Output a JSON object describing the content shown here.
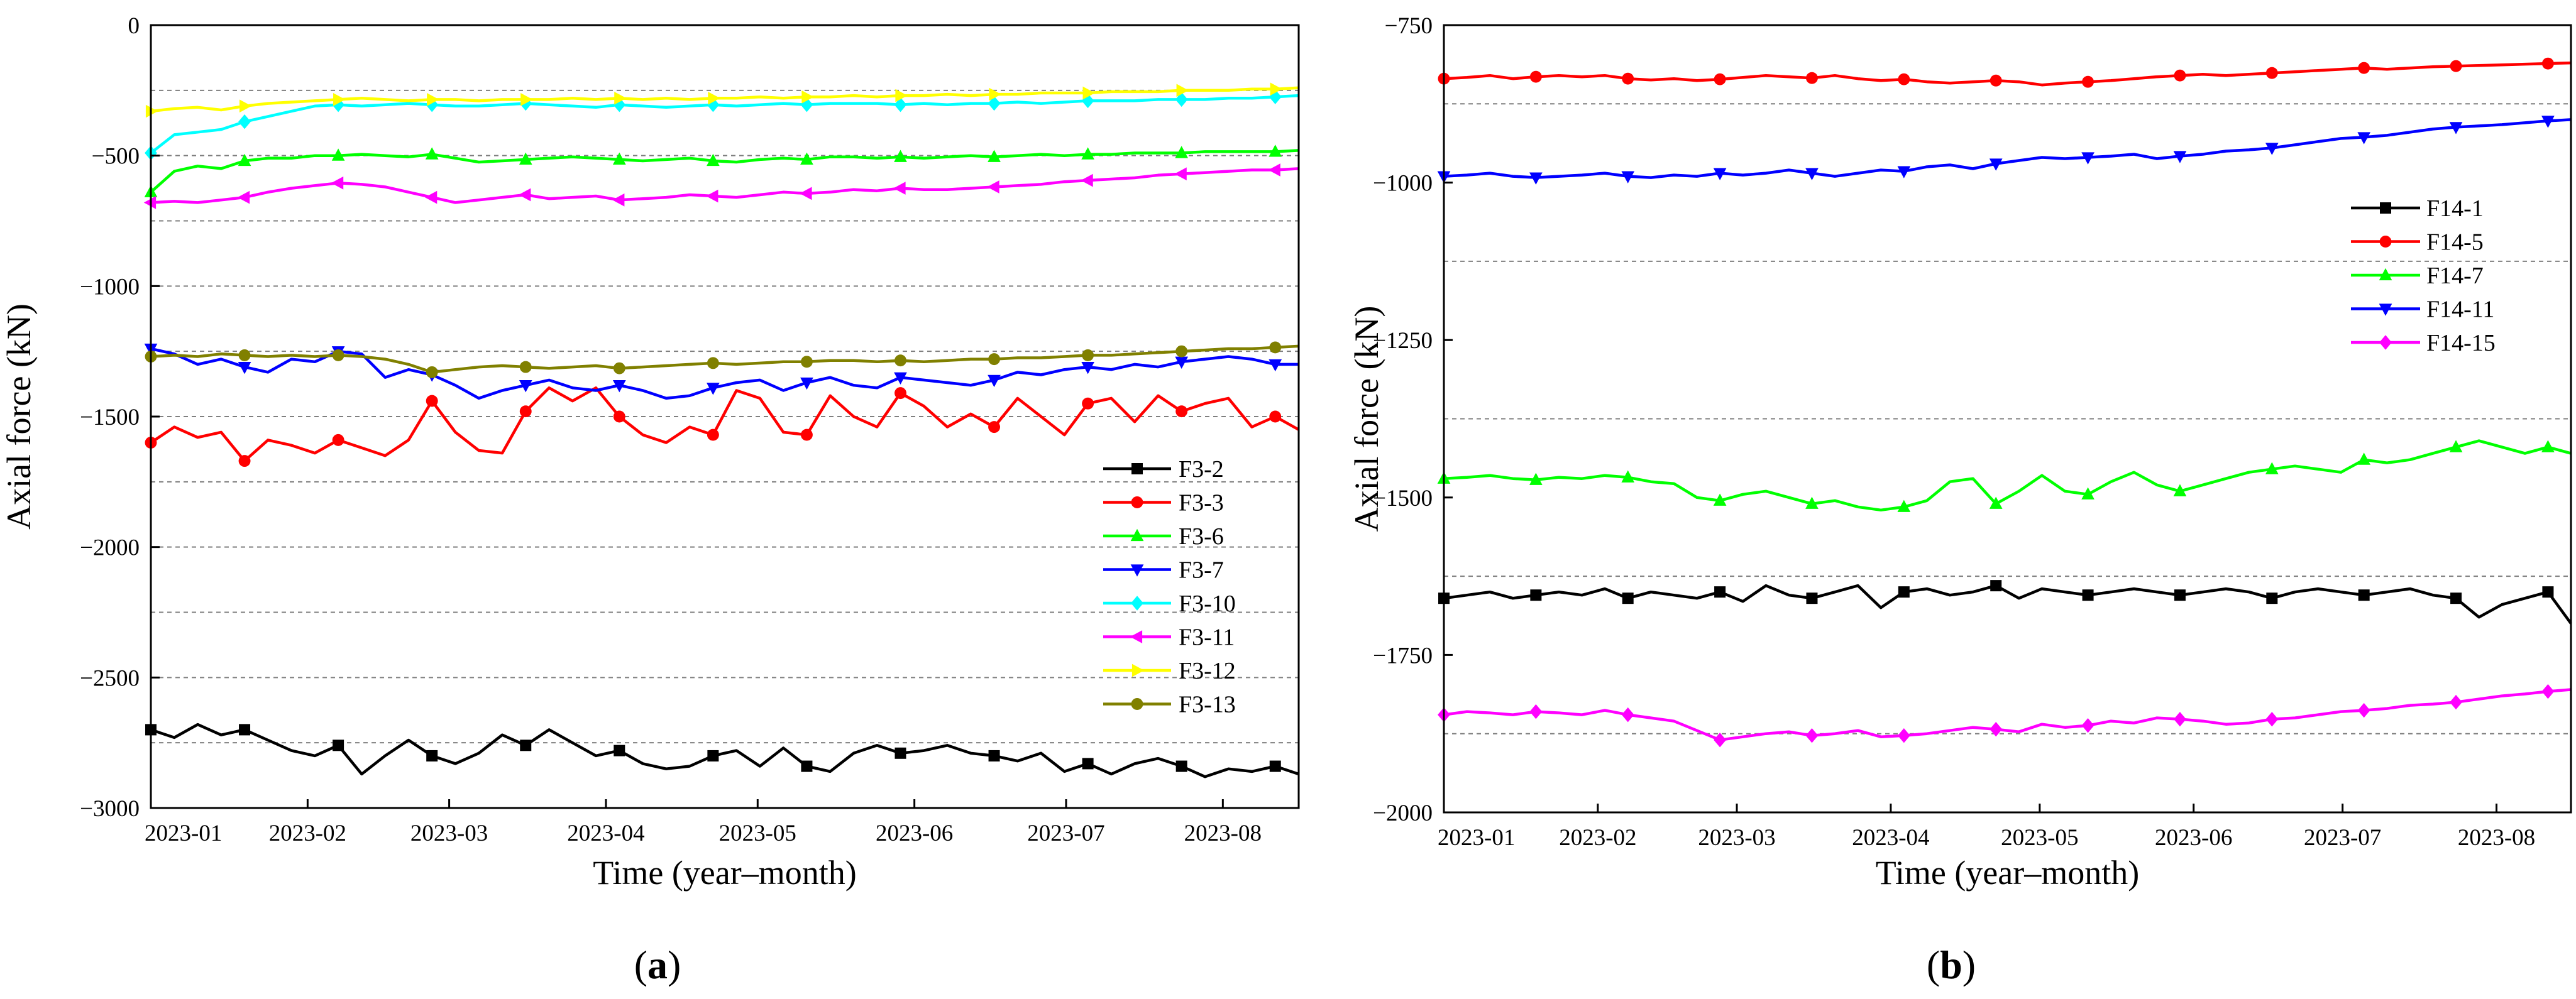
{
  "chart_data": [
    {
      "panel": "(a)",
      "panel_open": "(",
      "panel_letter": "a",
      "panel_close": ")",
      "type": "line",
      "xlabel": "Time (year–month)",
      "ylabel": "Axial force (kN)",
      "ylim": [
        -3000,
        0
      ],
      "yticks": [
        0,
        -500,
        -1000,
        -1500,
        -2000,
        -2500,
        -3000
      ],
      "y_tick_labels": [
        "0",
        "−500",
        "−1000",
        "−1500",
        "−2000",
        "−2500",
        "−3000"
      ],
      "grid_dashed_y": [
        -250,
        -500,
        -750,
        -1000,
        -1250,
        -1500,
        -1750,
        -2000,
        -2250,
        -2500,
        -2750
      ],
      "xlim": [
        0,
        227
      ],
      "x_ticks": [
        0,
        31,
        59,
        90,
        120,
        151,
        181,
        212
      ],
      "x_tick_labels": [
        "2023-01",
        "2023-02",
        "2023-03",
        "2023-04",
        "2023-05",
        "2023-06",
        "2023-07",
        "2023-08"
      ],
      "legend_position": "lower-right",
      "series": [
        {
          "name": "F3-2",
          "color": "#000000",
          "marker": "square",
          "values": [
            -2700,
            -2730,
            -2680,
            -2720,
            -2700,
            -2740,
            -2780,
            -2800,
            -2760,
            -2870,
            -2800,
            -2740,
            -2800,
            -2830,
            -2790,
            -2720,
            -2760,
            -2700,
            -2750,
            -2800,
            -2780,
            -2830,
            -2850,
            -2840,
            -2800,
            -2780,
            -2840,
            -2770,
            -2840,
            -2860,
            -2790,
            -2760,
            -2790,
            -2780,
            -2760,
            -2790,
            -2800,
            -2820,
            -2790,
            -2860,
            -2830,
            -2870,
            -2830,
            -2810,
            -2840,
            -2880,
            -2850,
            -2860,
            -2840,
            -2870
          ]
        },
        {
          "name": "F3-3",
          "color": "#ff0000",
          "marker": "circle",
          "values": [
            -1600,
            -1540,
            -1580,
            -1560,
            -1670,
            -1590,
            -1610,
            -1640,
            -1590,
            -1620,
            -1650,
            -1590,
            -1440,
            -1560,
            -1630,
            -1640,
            -1480,
            -1390,
            -1440,
            -1390,
            -1500,
            -1570,
            -1600,
            -1540,
            -1570,
            -1400,
            -1430,
            -1560,
            -1570,
            -1420,
            -1500,
            -1540,
            -1410,
            -1460,
            -1540,
            -1490,
            -1540,
            -1430,
            -1500,
            -1570,
            -1450,
            -1430,
            -1520,
            -1420,
            -1480,
            -1450,
            -1430,
            -1540,
            -1500,
            -1550
          ]
        },
        {
          "name": "F3-6",
          "color": "#00ff00",
          "marker": "triangle-up",
          "values": [
            -640,
            -560,
            -540,
            -550,
            -520,
            -510,
            -510,
            -500,
            -500,
            -495,
            -500,
            -505,
            -495,
            -510,
            -525,
            -520,
            -515,
            -510,
            -505,
            -510,
            -515,
            -520,
            -515,
            -510,
            -520,
            -525,
            -515,
            -510,
            -515,
            -505,
            -505,
            -510,
            -505,
            -510,
            -505,
            -500,
            -505,
            -500,
            -495,
            -500,
            -495,
            -495,
            -490,
            -490,
            -490,
            -485,
            -485,
            -485,
            -485,
            -480
          ]
        },
        {
          "name": "F3-7",
          "color": "#0000ff",
          "marker": "triangle-down",
          "values": [
            -1240,
            -1260,
            -1300,
            -1280,
            -1310,
            -1330,
            -1280,
            -1290,
            -1250,
            -1260,
            -1350,
            -1320,
            -1340,
            -1380,
            -1430,
            -1400,
            -1380,
            -1360,
            -1390,
            -1400,
            -1380,
            -1400,
            -1430,
            -1420,
            -1390,
            -1370,
            -1360,
            -1400,
            -1370,
            -1350,
            -1380,
            -1390,
            -1350,
            -1360,
            -1370,
            -1380,
            -1360,
            -1330,
            -1340,
            -1320,
            -1310,
            -1320,
            -1300,
            -1310,
            -1290,
            -1280,
            -1270,
            -1280,
            -1300,
            -1300
          ]
        },
        {
          "name": "F3-10",
          "color": "#00ffff",
          "marker": "diamond",
          "values": [
            -490,
            -420,
            -410,
            -400,
            -370,
            -350,
            -330,
            -310,
            -305,
            -310,
            -305,
            -300,
            -305,
            -310,
            -310,
            -305,
            -300,
            -305,
            -310,
            -315,
            -305,
            -310,
            -315,
            -310,
            -305,
            -310,
            -305,
            -300,
            -305,
            -300,
            -300,
            -300,
            -305,
            -300,
            -305,
            -300,
            -300,
            -295,
            -300,
            -295,
            -290,
            -290,
            -290,
            -285,
            -285,
            -285,
            -280,
            -280,
            -275,
            -270
          ]
        },
        {
          "name": "F3-11",
          "color": "#ff00ff",
          "marker": "triangle-left",
          "values": [
            -680,
            -675,
            -680,
            -670,
            -660,
            -640,
            -625,
            -615,
            -605,
            -610,
            -620,
            -640,
            -660,
            -680,
            -670,
            -660,
            -650,
            -665,
            -660,
            -655,
            -670,
            -665,
            -660,
            -650,
            -655,
            -660,
            -650,
            -640,
            -645,
            -640,
            -630,
            -635,
            -625,
            -630,
            -630,
            -625,
            -620,
            -615,
            -610,
            -600,
            -595,
            -590,
            -585,
            -575,
            -570,
            -565,
            -560,
            -555,
            -555,
            -550
          ]
        },
        {
          "name": "F3-12",
          "color": "#ffff00",
          "marker": "triangle-right",
          "values": [
            -330,
            -320,
            -315,
            -325,
            -310,
            -300,
            -295,
            -290,
            -285,
            -280,
            -285,
            -290,
            -285,
            -285,
            -290,
            -285,
            -285,
            -285,
            -280,
            -285,
            -280,
            -285,
            -280,
            -285,
            -280,
            -280,
            -275,
            -280,
            -275,
            -275,
            -270,
            -275,
            -270,
            -270,
            -265,
            -270,
            -265,
            -265,
            -260,
            -260,
            -260,
            -255,
            -255,
            -255,
            -250,
            -250,
            -250,
            -245,
            -245,
            -240
          ]
        },
        {
          "name": "F3-13",
          "color": "#808000",
          "marker": "circle",
          "values": [
            -1270,
            -1265,
            -1270,
            -1260,
            -1265,
            -1270,
            -1265,
            -1270,
            -1265,
            -1270,
            -1280,
            -1300,
            -1330,
            -1320,
            -1310,
            -1305,
            -1310,
            -1315,
            -1310,
            -1305,
            -1315,
            -1310,
            -1305,
            -1300,
            -1295,
            -1300,
            -1295,
            -1290,
            -1290,
            -1285,
            -1285,
            -1290,
            -1285,
            -1290,
            -1285,
            -1280,
            -1280,
            -1275,
            -1275,
            -1270,
            -1265,
            -1265,
            -1260,
            -1255,
            -1250,
            -1245,
            -1240,
            -1240,
            -1235,
            -1230
          ]
        }
      ]
    },
    {
      "panel": "(b)",
      "panel_open": "(",
      "panel_letter": "b",
      "panel_close": ")",
      "type": "line",
      "xlabel": "Time (year–month)",
      "ylabel": "Axial force (kN)",
      "ylim": [
        -2000,
        -750
      ],
      "yticks": [
        -750,
        -1000,
        -1250,
        -1500,
        -1750,
        -2000
      ],
      "y_tick_labels": [
        "−750",
        "−1000",
        "−1250",
        "−1500",
        "−1750",
        "−2000"
      ],
      "grid_dashed_y": [
        -875,
        -1125,
        -1375,
        -1625,
        -1875
      ],
      "xlim": [
        0,
        227
      ],
      "x_ticks": [
        0,
        31,
        59,
        90,
        120,
        151,
        181,
        212
      ],
      "x_tick_labels": [
        "2023-01",
        "2023-02",
        "2023-03",
        "2023-04",
        "2023-05",
        "2023-06",
        "2023-07",
        "2023-08"
      ],
      "legend_position": "upper-right",
      "series": [
        {
          "name": "F14-1",
          "color": "#000000",
          "marker": "square",
          "values": [
            -1660,
            -1655,
            -1650,
            -1660,
            -1655,
            -1650,
            -1655,
            -1645,
            -1660,
            -1650,
            -1655,
            -1660,
            -1650,
            -1665,
            -1640,
            -1655,
            -1660,
            -1650,
            -1640,
            -1675,
            -1650,
            -1645,
            -1655,
            -1650,
            -1640,
            -1660,
            -1645,
            -1650,
            -1655,
            -1650,
            -1645,
            -1650,
            -1655,
            -1650,
            -1645,
            -1650,
            -1660,
            -1650,
            -1645,
            -1650,
            -1655,
            -1650,
            -1645,
            -1655,
            -1660,
            -1690,
            -1670,
            -1660,
            -1650,
            -1700
          ]
        },
        {
          "name": "F14-5",
          "color": "#ff0000",
          "marker": "circle",
          "values": [
            -835,
            -833,
            -830,
            -835,
            -832,
            -830,
            -832,
            -830,
            -835,
            -837,
            -835,
            -838,
            -836,
            -833,
            -830,
            -832,
            -834,
            -830,
            -835,
            -838,
            -836,
            -840,
            -842,
            -840,
            -838,
            -840,
            -845,
            -842,
            -840,
            -838,
            -835,
            -832,
            -830,
            -828,
            -830,
            -828,
            -826,
            -824,
            -822,
            -820,
            -818,
            -820,
            -818,
            -816,
            -815,
            -814,
            -813,
            -812,
            -811,
            -810
          ]
        },
        {
          "name": "F14-7",
          "color": "#00ff00",
          "marker": "triangle-up",
          "values": [
            -1470,
            -1468,
            -1465,
            -1470,
            -1472,
            -1468,
            -1470,
            -1465,
            -1468,
            -1475,
            -1478,
            -1500,
            -1505,
            -1495,
            -1490,
            -1500,
            -1510,
            -1505,
            -1515,
            -1520,
            -1515,
            -1505,
            -1475,
            -1470,
            -1510,
            -1490,
            -1465,
            -1490,
            -1495,
            -1475,
            -1460,
            -1480,
            -1490,
            -1480,
            -1470,
            -1460,
            -1455,
            -1450,
            -1455,
            -1460,
            -1440,
            -1445,
            -1440,
            -1430,
            -1420,
            -1410,
            -1420,
            -1430,
            -1420,
            -1430
          ]
        },
        {
          "name": "F14-11",
          "color": "#0000ff",
          "marker": "triangle-down",
          "values": [
            -990,
            -988,
            -985,
            -990,
            -992,
            -990,
            -988,
            -985,
            -990,
            -992,
            -988,
            -990,
            -985,
            -988,
            -985,
            -980,
            -985,
            -990,
            -985,
            -980,
            -982,
            -975,
            -972,
            -978,
            -970,
            -965,
            -960,
            -962,
            -960,
            -958,
            -955,
            -962,
            -958,
            -955,
            -950,
            -948,
            -945,
            -940,
            -935,
            -930,
            -928,
            -925,
            -920,
            -915,
            -912,
            -910,
            -908,
            -905,
            -902,
            -900
          ]
        },
        {
          "name": "F14-15",
          "color": "#ff00ff",
          "marker": "diamond",
          "values": [
            -1845,
            -1840,
            -1842,
            -1845,
            -1840,
            -1842,
            -1845,
            -1838,
            -1845,
            -1850,
            -1855,
            -1870,
            -1885,
            -1880,
            -1875,
            -1872,
            -1878,
            -1875,
            -1870,
            -1880,
            -1878,
            -1875,
            -1870,
            -1865,
            -1868,
            -1872,
            -1860,
            -1865,
            -1862,
            -1855,
            -1858,
            -1850,
            -1852,
            -1855,
            -1860,
            -1858,
            -1852,
            -1850,
            -1845,
            -1840,
            -1838,
            -1835,
            -1830,
            -1828,
            -1825,
            -1820,
            -1815,
            -1812,
            -1808,
            -1805
          ]
        }
      ]
    }
  ]
}
